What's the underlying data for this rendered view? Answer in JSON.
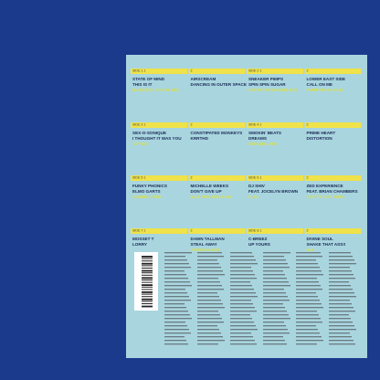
{
  "tracks": [
    {
      "side": "SIDE 1 1",
      "artist": "STATE OF MIND",
      "title": "THIS IS IT",
      "mix": "NU SKOOL VOCAL MIX"
    },
    {
      "side": "2",
      "artist": "AIRSCREAM",
      "title": "DANCING IN OUTER SPACE"
    },
    {
      "side": "SIDE 2 1",
      "artist": "SNEAKER PIMPS",
      "title": "SPIN SPIN SUGAR",
      "mix": "FAST FOR SECOND MIX"
    },
    {
      "side": "2",
      "artist": "LOWER EAST SIDE",
      "title": "CALL ON ME",
      "mix": "PUMP UP DA DUB"
    },
    {
      "side": "SIDE 3 1",
      "artist": "SEX-O-SONIQUE",
      "title": "I THOUGHT IT WAS YOU",
      "mix": "12\" MIX"
    },
    {
      "side": "2",
      "artist": "CONSTIPATED MONKEYS",
      "title": "KRRTHD"
    },
    {
      "side": "SIDE 4 1",
      "artist": "SMOKIN' BEATS",
      "title": "DREAMS",
      "mix": "ORIGINAL MIX"
    },
    {
      "side": "2",
      "artist": "PRIME HEART",
      "title": "DISTORTION"
    },
    {
      "side": "SIDE 5 1",
      "artist": "FUNKY PHONICS",
      "title": "ELMO GARTS",
      "mix": "CLUBB 10 MIX"
    },
    {
      "side": "2",
      "artist": "MICHELLE WEEKS",
      "title": "DON'T GIVE UP",
      "mix": "M&S EPIC BASS MIX"
    },
    {
      "side": "SIDE 6 1",
      "artist": "DJ SHIV",
      "title": "FEAT. JOCELYN BROWN",
      "mix": "FUN"
    },
    {
      "side": "2",
      "artist": "ZED EXPERIENCE",
      "title": "FEAT. BRIAN CHAMBERS",
      "mix": "OUT TO GET FUZZ"
    },
    {
      "side": "SIDE 7 1",
      "artist": "MOSSET T",
      "title": "LORRY"
    },
    {
      "side": "2",
      "artist": "DAWN TALLMAN",
      "title": "STEAL AWAY",
      "mix": "ORIGINAL MIX"
    },
    {
      "side": "SIDE 8 1",
      "artist": "C-BREEZ",
      "title": "UP YOURS"
    },
    {
      "side": "2",
      "artist": "DIVINE SOUL",
      "title": "SHAKE THAT ASS!!",
      "mix": "MIX"
    }
  ]
}
